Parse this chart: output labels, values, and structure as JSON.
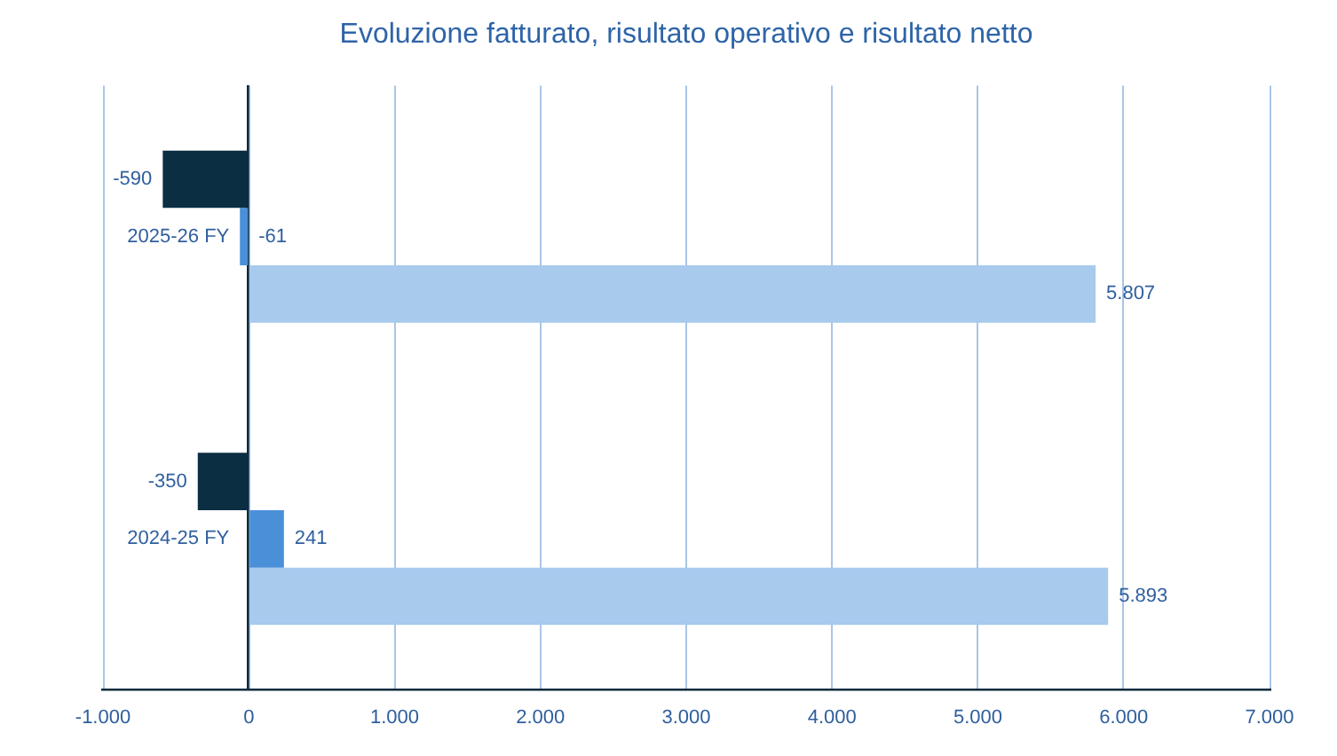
{
  "chart_data": {
    "type": "bar",
    "orientation": "horizontal",
    "title": "Evoluzione fatturato, risultato operativo e risultato netto",
    "categories": [
      "2025-26 FY",
      "2024-25 FY"
    ],
    "series": [
      {
        "color": "#0b2e42",
        "values": [
          -590,
          -350
        ],
        "value_labels": [
          "-590",
          "-350"
        ]
      },
      {
        "color": "#4a90d9",
        "values": [
          -61,
          241
        ],
        "value_labels": [
          "-61",
          "241"
        ]
      },
      {
        "color": "#a7caed",
        "values": [
          5807,
          5893
        ],
        "value_labels": [
          "5.807",
          "5.893"
        ]
      }
    ],
    "xlim": [
      -1000,
      7000
    ],
    "xticks": [
      {
        "value": -1000,
        "label": "-1.000"
      },
      0,
      {
        "value": 1000,
        "label": "1.000"
      },
      {
        "value": 2000,
        "label": "2.000"
      },
      {
        "value": 3000,
        "label": "3.000"
      },
      {
        "value": 4000,
        "label": "4.000"
      },
      {
        "value": 5000,
        "label": "5.000"
      },
      {
        "value": 6000,
        "label": "6.000"
      },
      {
        "value": 7000,
        "label": "7.000"
      }
    ],
    "grid": "x"
  }
}
